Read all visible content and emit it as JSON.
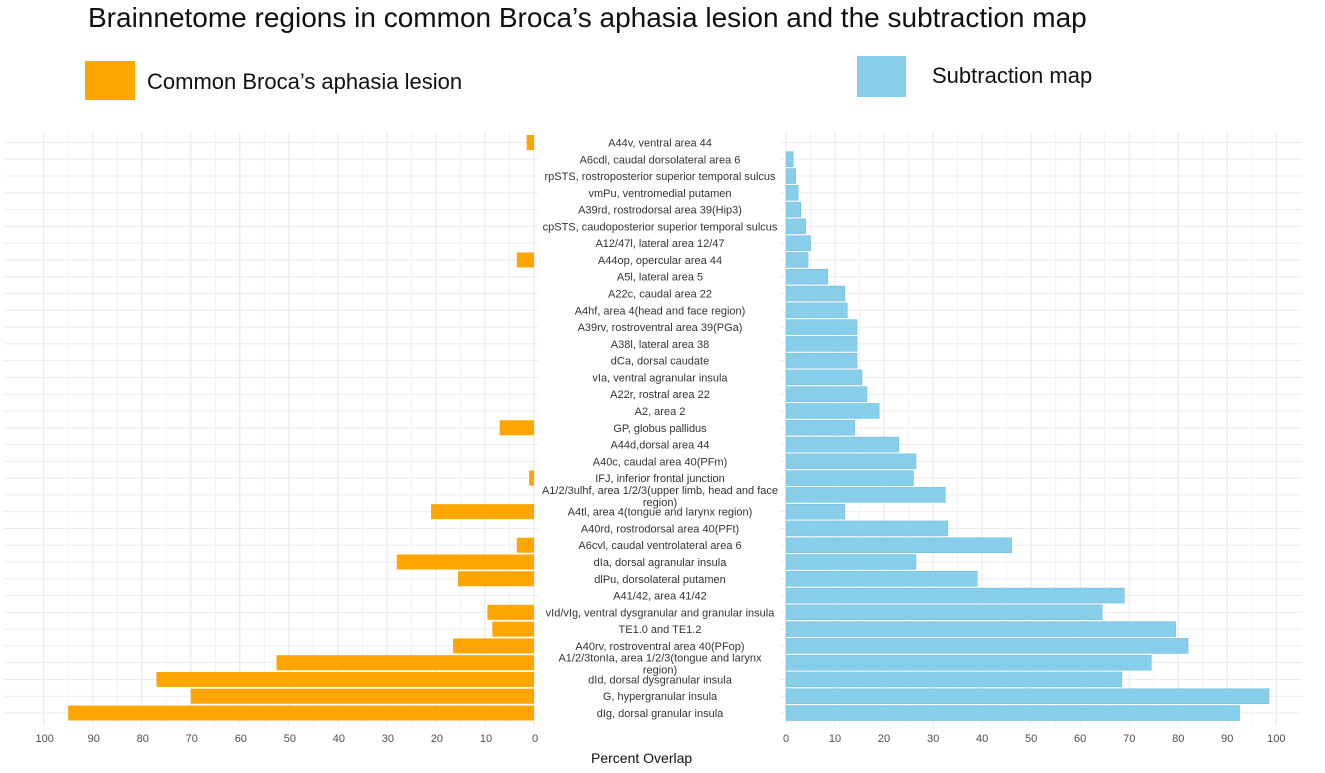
{
  "title": "Brainnetome regions in common Broca’s aphasia lesion and the subtraction map",
  "legend": {
    "left": {
      "label": "Common Broca’s aphasia lesion",
      "color": "#FFA500"
    },
    "right": {
      "label": "Subtraction map",
      "color": "#87CEEB"
    }
  },
  "chart_data": {
    "type": "bar",
    "orientation": "horizontal-butterfly",
    "title": "Brainnetome regions in common Broca’s aphasia lesion and the subtraction map",
    "xlabel": "Percent Overlap",
    "xlim": [
      0,
      100
    ],
    "x_ticks_left": [
      "100",
      "90",
      "80",
      "70",
      "60",
      "50",
      "40",
      "30",
      "20",
      "10",
      "0"
    ],
    "x_ticks_right": [
      "0",
      "10",
      "20",
      "30",
      "40",
      "50",
      "60",
      "70",
      "80",
      "90",
      "100"
    ],
    "grid": true,
    "categories": [
      "A44v, ventral area 44",
      "A6cdl, caudal dorsolateral area 6",
      "rpSTS, rostroposterior superior temporal sulcus",
      "vmPu, ventromedial putamen",
      "A39rd, rostrodorsal area 39(Hip3)",
      "cpSTS, caudoposterior superior temporal sulcus",
      "A12/47l, lateral area 12/47",
      "A44op, opercular area 44",
      "A5l, lateral area 5",
      "A22c, caudal area 22",
      "A4hf, area 4(head and face region)",
      "A39rv, rostroventral area 39(PGa)",
      "A38l, lateral area 38",
      "dCa, dorsal caudate",
      "vIa, ventral agranular insula",
      "A22r, rostral area 22",
      "A2, area 2",
      "GP, globus pallidus",
      "A44d,dorsal area 44",
      "A40c, caudal area 40(PFm)",
      "IFJ, inferior frontal junction",
      "A1/2/3ulhf, area 1/2/3(upper limb, head and face region)",
      "A4tl, area 4(tongue and larynx region)",
      "A40rd, rostrodorsal area 40(PFt)",
      "A6cvl, caudal ventrolateral area 6",
      "dIa, dorsal agranular insula",
      "dlPu, dorsolateral putamen",
      "A41/42, area 41/42",
      "vId/vIg, ventral dysgranular and granular insula",
      "TE1.0 and TE1.2",
      "A40rv, rostroventral area 40(PFop)",
      "A1/2/3tonIa, area 1/2/3(tongue and larynx region)",
      "dId, dorsal dysgranular insula",
      "G, hypergranular insula",
      "dIg, dorsal granular insula"
    ],
    "series": [
      {
        "name": "Common Broca’s aphasia lesion",
        "color": "#FFA500",
        "values": [
          1.5,
          0,
          0,
          0,
          0,
          0,
          0,
          3.5,
          0,
          0,
          0,
          0,
          0,
          0,
          0,
          0,
          0,
          7,
          0,
          0,
          1,
          0,
          21,
          0,
          3.5,
          28,
          15.5,
          0,
          9.5,
          8.5,
          16.5,
          52.5,
          77,
          70,
          95
        ]
      },
      {
        "name": "Subtraction map",
        "color": "#87CEEB",
        "values": [
          0,
          1.5,
          2,
          2.5,
          3,
          4,
          5,
          4.5,
          8.5,
          12,
          12.5,
          14.5,
          14.5,
          14.5,
          15.5,
          16.5,
          19,
          14,
          23,
          26.5,
          26,
          32.5,
          12,
          33,
          46,
          26.5,
          39,
          69,
          64.5,
          79.5,
          82,
          74.5,
          68.5,
          98.5,
          92.5
        ]
      }
    ]
  }
}
